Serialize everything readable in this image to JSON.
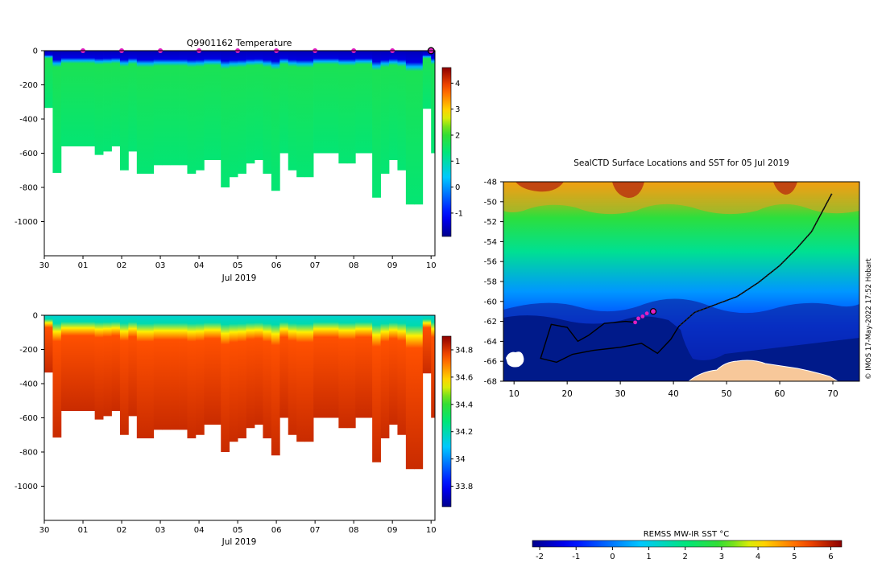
{
  "chart_data": [
    {
      "type": "heatmap",
      "title": "Q9901162  Temperature",
      "variable": "temperature",
      "xlabel": "Jul 2019",
      "x_tick_labels": [
        "30",
        "01",
        "02",
        "03",
        "04",
        "05",
        "06",
        "07",
        "08",
        "09",
        "10"
      ],
      "xlim_days": [
        0,
        10.1
      ],
      "ylim": [
        -1200,
        0
      ],
      "y_ticks": [
        0,
        -200,
        -400,
        -600,
        -800,
        -1000
      ],
      "y_tick_labels": [
        "0",
        "-200",
        "-400",
        "-600",
        "-800",
        "-1000"
      ],
      "colorbar": {
        "min": -1.9,
        "max": 4.6,
        "ticks": [
          -1,
          0,
          1,
          2,
          3,
          4
        ],
        "tick_labels": [
          "-1",
          "0",
          "1",
          "2",
          "3",
          "4"
        ]
      },
      "surface_marker_days": [
        1,
        2,
        3,
        4,
        5,
        6,
        7,
        8,
        9
      ],
      "last_profile_day": 10,
      "profile_max_depths_m": [
        -335,
        -715,
        -560,
        -560,
        -560,
        -560,
        -610,
        -590,
        -560,
        -700,
        -590,
        -720,
        -720,
        -670,
        -670,
        -670,
        -670,
        -720,
        -700,
        -640,
        -640,
        -800,
        -740,
        -720,
        -660,
        -640,
        -720,
        -820,
        -600,
        -700,
        -740,
        -740,
        -600,
        -600,
        -600,
        -660,
        -660,
        -600,
        -600,
        -860,
        -720,
        -640,
        -700,
        -900,
        -900,
        -340,
        -600
      ],
      "layers": {
        "surface_mixed_layer_temp": -1.6,
        "mixed_layer_bottom_m": -90,
        "thermocline_bottom_m": -160,
        "deep_water_temp": 1.4
      }
    },
    {
      "type": "heatmap",
      "title": "",
      "variable": "salinity",
      "xlabel": "Jul 2019",
      "x_tick_labels": [
        "30",
        "01",
        "02",
        "03",
        "04",
        "05",
        "06",
        "07",
        "08",
        "09",
        "10"
      ],
      "xlim_days": [
        0,
        10.1
      ],
      "ylim": [
        -1200,
        0
      ],
      "y_ticks": [
        0,
        -200,
        -400,
        -600,
        -800,
        -1000
      ],
      "y_tick_labels": [
        "0",
        "-200",
        "-400",
        "-600",
        "-800",
        "-1000"
      ],
      "colorbar": {
        "min": 33.65,
        "max": 34.9,
        "ticks": [
          33.8,
          34,
          34.2,
          34.4,
          34.6,
          34.8
        ],
        "tick_labels": [
          "33.8",
          "34",
          "34.2",
          "34.4",
          "34.6",
          "34.8"
        ]
      },
      "layers": {
        "surface_salinity": 34.15,
        "halocline_bottom_m": -160,
        "deep_salinity": 34.82
      }
    },
    {
      "type": "map",
      "title": "SealCTD Surface Locations and SST for 05 Jul 2019",
      "xlim": [
        8,
        75
      ],
      "ylim": [
        -68,
        -48
      ],
      "x_ticks": [
        10,
        20,
        30,
        40,
        50,
        60,
        70
      ],
      "x_tick_labels": [
        "10",
        "20",
        "30",
        "40",
        "50",
        "60",
        "70"
      ],
      "y_ticks": [
        -48,
        -50,
        -52,
        -54,
        -56,
        -58,
        -60,
        -62,
        -64,
        -66,
        -68
      ],
      "y_tick_labels": [
        "-48",
        "-50",
        "-52",
        "-54",
        "-56",
        "-58",
        "-60",
        "-62",
        "-64",
        "-66",
        "-68"
      ],
      "credit": "© IMOS 17-May-2022 17:52 Hobart",
      "colorbar": {
        "label": "REMSS MW-IR SST °C",
        "min": -2.2,
        "max": 6.3,
        "ticks": [
          -2,
          -1,
          0,
          1,
          2,
          3,
          4,
          5,
          6
        ],
        "tick_labels": [
          "-2",
          "-1",
          "0",
          "1",
          "2",
          "3",
          "4",
          "5",
          "6"
        ]
      },
      "track_lonlat": [
        [
          69.8,
          -49.2
        ],
        [
          68,
          -51
        ],
        [
          66,
          -53
        ],
        [
          63,
          -54.8
        ],
        [
          60,
          -56.4
        ],
        [
          56,
          -58.1
        ],
        [
          52,
          -59.5
        ],
        [
          48,
          -60.3
        ],
        [
          44,
          -61.1
        ],
        [
          41,
          -62.5
        ],
        [
          39.5,
          -63.8
        ],
        [
          37,
          -65.2
        ],
        [
          34,
          -64.2
        ],
        [
          30,
          -64.6
        ],
        [
          25,
          -64.9
        ],
        [
          21,
          -65.3
        ],
        [
          18,
          -66.1
        ],
        [
          15,
          -65.7
        ],
        [
          17,
          -62.3
        ],
        [
          20,
          -62.6
        ],
        [
          22,
          -64
        ],
        [
          24,
          -63.4
        ],
        [
          27,
          -62.2
        ],
        [
          31,
          -62.0
        ],
        [
          33,
          -62.1
        ]
      ],
      "recent_positions_lonlat": [
        [
          32.8,
          -62.1
        ],
        [
          33.4,
          -61.7
        ],
        [
          34.2,
          -61.5
        ],
        [
          35,
          -61.2
        ]
      ],
      "current_position_lonlat": [
        36.2,
        -61.0
      ],
      "sst_zones": {
        "north_warm_sst": 4.6,
        "mid_sst": 1.8,
        "south_cold_sst": -0.6,
        "sea_ice_sst": -1.9
      }
    }
  ]
}
